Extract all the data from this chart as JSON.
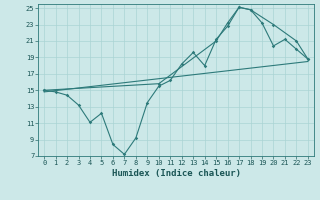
{
  "xlabel": "Humidex (Indice chaleur)",
  "xlim": [
    -0.5,
    23.5
  ],
  "ylim": [
    7,
    25.5
  ],
  "yticks": [
    7,
    9,
    11,
    13,
    15,
    17,
    19,
    21,
    23,
    25
  ],
  "xticks": [
    0,
    1,
    2,
    3,
    4,
    5,
    6,
    7,
    8,
    9,
    10,
    11,
    12,
    13,
    14,
    15,
    16,
    17,
    18,
    19,
    20,
    21,
    22,
    23
  ],
  "bg_color": "#cce8e8",
  "line_color": "#2d7a7a",
  "line1_x": [
    0,
    1,
    2,
    3,
    4,
    5,
    6,
    7,
    8,
    9,
    10,
    11,
    12,
    13,
    14,
    15,
    16,
    17,
    18,
    19,
    20,
    21,
    22,
    23
  ],
  "line1_y": [
    15.0,
    14.8,
    14.4,
    13.2,
    11.1,
    12.2,
    8.4,
    7.2,
    9.2,
    13.5,
    15.5,
    16.2,
    18.2,
    19.6,
    18.0,
    21.2,
    22.8,
    25.1,
    24.8,
    23.2,
    20.4,
    21.2,
    20.0,
    18.8
  ],
  "line2_x": [
    0,
    10,
    15,
    16,
    17,
    18,
    20,
    22,
    23
  ],
  "line2_y": [
    15.0,
    15.8,
    21.0,
    23.2,
    25.1,
    24.8,
    23.0,
    21.0,
    18.8
  ],
  "line3_x": [
    0,
    23
  ],
  "line3_y": [
    14.8,
    18.5
  ],
  "xlabel_fontsize": 6.5,
  "tick_fontsize": 5.0
}
